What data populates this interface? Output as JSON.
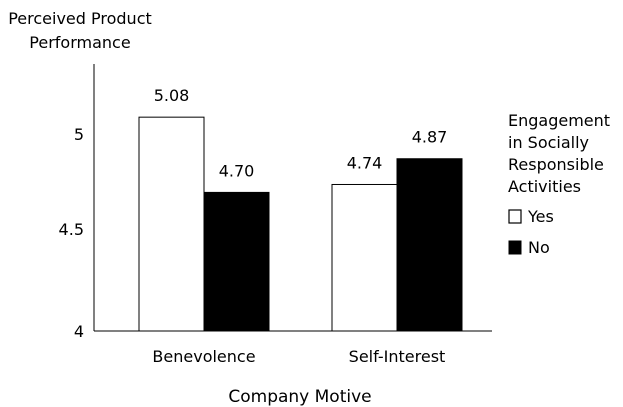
{
  "chart_data": {
    "type": "bar",
    "ylabel": [
      "Perceived Product",
      "Performance"
    ],
    "xlabel": "Company Motive",
    "categories": [
      "Benevolence",
      "Self-Interest"
    ],
    "ylim": [
      4,
      5.4
    ],
    "yticks": [
      "4",
      "4.5",
      "5"
    ],
    "series": [
      {
        "name": "Yes",
        "values": [
          5.08,
          4.74
        ],
        "labels": [
          "5.08",
          "4.74"
        ],
        "color": "#ffffff"
      },
      {
        "name": "No",
        "values": [
          4.7,
          4.87
        ],
        "labels": [
          "4.70",
          "4.87"
        ],
        "color": "#000000"
      }
    ],
    "legend": {
      "title": [
        "Engagement",
        "in Socially",
        "Responsible",
        "Activities"
      ],
      "position": "right"
    },
    "grid": false
  }
}
